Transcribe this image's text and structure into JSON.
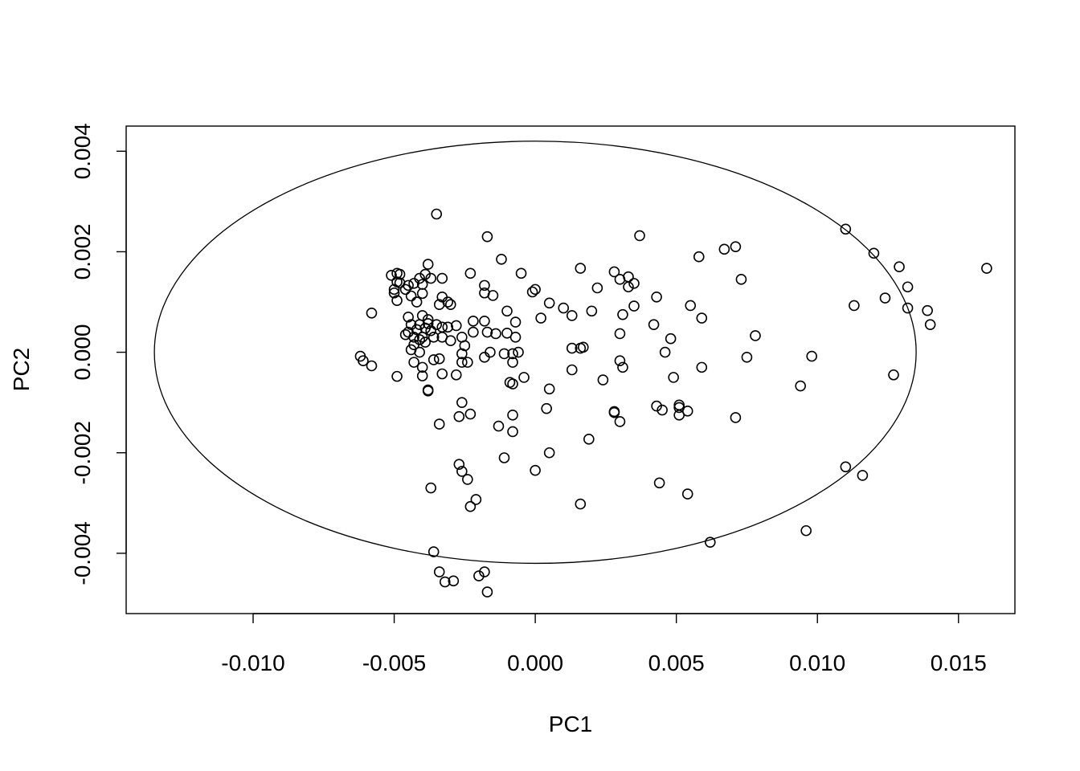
{
  "chart_data": {
    "type": "scatter",
    "title": "",
    "xlabel": "PC1",
    "ylabel": "PC2",
    "xlim": [
      -0.0145,
      0.017
    ],
    "ylim": [
      -0.0052,
      0.0045
    ],
    "x_ticks": [
      -0.01,
      -0.005,
      0.0,
      0.005,
      0.01,
      0.015
    ],
    "x_tick_labels": [
      "-0.010",
      "-0.005",
      "0.000",
      "0.005",
      "0.010",
      "0.015"
    ],
    "y_ticks": [
      -0.004,
      -0.002,
      0.0,
      0.002,
      0.004
    ],
    "y_tick_labels": [
      "-0.004",
      "-0.002",
      "0.000",
      "0.002",
      "0.004"
    ],
    "grid": false,
    "ellipse": {
      "center": [
        0.0,
        0.0
      ],
      "radius_x": 0.0135,
      "radius_y": 0.0042
    },
    "points": [
      [
        -0.0035,
        0.00275
      ],
      [
        -0.0017,
        0.0023
      ],
      [
        -0.0012,
        0.00185
      ],
      [
        -0.0023,
        0.00157
      ],
      [
        -0.0033,
        0.00147
      ],
      [
        -0.0018,
        0.00133
      ],
      [
        -0.0015,
        0.00113
      ],
      [
        -0.0005,
        0.00157
      ],
      [
        -0.0,
        0.00125
      ],
      [
        -0.0001,
        0.0012
      ],
      [
        -0.0038,
        0.00175
      ],
      [
        -0.0039,
        0.00155
      ],
      [
        -0.0037,
        0.00147
      ],
      [
        -0.0041,
        0.00147
      ],
      [
        -0.004,
        0.00135
      ],
      [
        -0.0043,
        0.00137
      ],
      [
        -0.0045,
        0.00133
      ],
      [
        -0.0049,
        0.00157
      ],
      [
        -0.0048,
        0.00155
      ],
      [
        -0.0051,
        0.00153
      ],
      [
        -0.0049,
        0.0014
      ],
      [
        -0.0048,
        0.00138
      ],
      [
        -0.005,
        0.00125
      ],
      [
        -0.005,
        0.00118
      ],
      [
        -0.0049,
        0.00103
      ],
      [
        -0.0046,
        0.00125
      ],
      [
        -0.0044,
        0.00112
      ],
      [
        -0.0042,
        0.001
      ],
      [
        -0.004,
        0.00117
      ],
      [
        -0.0033,
        0.0011
      ],
      [
        -0.0034,
        0.00095
      ],
      [
        -0.0031,
        0.001
      ],
      [
        -0.003,
        0.00095
      ],
      [
        -0.0018,
        0.00118
      ],
      [
        -0.0058,
        0.00078
      ],
      [
        -0.004,
        0.00073
      ],
      [
        -0.0038,
        0.00065
      ],
      [
        -0.0038,
        0.00057
      ],
      [
        -0.0039,
        0.00048
      ],
      [
        -0.0037,
        0.00043
      ],
      [
        -0.0035,
        0.00055
      ],
      [
        -0.0033,
        0.0005
      ],
      [
        -0.0031,
        0.0005
      ],
      [
        -0.0028,
        0.00053
      ],
      [
        -0.0022,
        0.00062
      ],
      [
        -0.0018,
        0.00062
      ],
      [
        -0.0041,
        0.00055
      ],
      [
        -0.0044,
        0.00055
      ],
      [
        -0.0045,
        0.0007
      ],
      [
        -0.0042,
        0.00045
      ],
      [
        -0.0046,
        0.00035
      ],
      [
        -0.0045,
        0.0004
      ],
      [
        -0.0043,
        0.0003
      ],
      [
        -0.004,
        0.0003
      ],
      [
        -0.0041,
        0.00025
      ],
      [
        -0.0043,
        0.00015
      ],
      [
        -0.0044,
        5e-05
      ],
      [
        -0.0041,
        0.0
      ],
      [
        -0.0039,
        0.0002
      ],
      [
        -0.0036,
        0.0003
      ],
      [
        -0.0033,
        0.0003
      ],
      [
        -0.003,
        0.00023
      ],
      [
        -0.0026,
        0.0003
      ],
      [
        -0.0022,
        0.0004
      ],
      [
        -0.0017,
        0.0004
      ],
      [
        -0.001,
        0.00082
      ],
      [
        -0.0007,
        0.0006
      ],
      [
        -0.001,
        0.00038
      ],
      [
        -0.0007,
        0.0003
      ],
      [
        -0.0014,
        0.00037
      ],
      [
        -0.0006,
        0.0
      ],
      [
        -0.0011,
        -3e-05
      ],
      [
        -0.0008,
        -3e-05
      ],
      [
        -0.0016,
        0.0
      ],
      [
        -0.0018,
        -0.0001
      ],
      [
        -0.0026,
        -3e-05
      ],
      [
        -0.0025,
        0.00013
      ],
      [
        -0.0026,
        -0.0002
      ],
      [
        -0.0024,
        -0.0002
      ],
      [
        -0.0034,
        -0.00013
      ],
      [
        -0.0036,
        -0.00015
      ],
      [
        -0.004,
        -0.0003
      ],
      [
        -0.0043,
        -0.0002
      ],
      [
        -0.004,
        -0.00047
      ],
      [
        -0.0033,
        -0.00043
      ],
      [
        -0.0028,
        -0.00045
      ],
      [
        -0.0049,
        -0.00048
      ],
      [
        -0.0062,
        -8e-05
      ],
      [
        -0.0061,
        -0.00017
      ],
      [
        -0.0058,
        -0.00027
      ],
      [
        -0.0038,
        -0.00075
      ],
      [
        -0.0038,
        -0.00077
      ],
      [
        -0.0008,
        -0.0002
      ],
      [
        -0.0009,
        -0.0006
      ],
      [
        -0.0008,
        -0.00063
      ],
      [
        -0.0004,
        -0.0005
      ],
      [
        0.0005,
        -0.00073
      ],
      [
        0.0004,
        -0.00112
      ],
      [
        -0.0008,
        -0.00125
      ],
      [
        -0.0013,
        -0.00147
      ],
      [
        -0.0008,
        -0.00158
      ],
      [
        -0.0023,
        -0.00123
      ],
      [
        -0.0027,
        -0.00128
      ],
      [
        -0.0026,
        -0.001
      ],
      [
        -0.0034,
        -0.00143
      ],
      [
        0.0005,
        -0.002
      ],
      [
        -0.0011,
        -0.0021
      ],
      [
        -0.0027,
        -0.00223
      ],
      [
        -0.0026,
        -0.00237
      ],
      [
        -0.0024,
        -0.00253
      ],
      [
        -0.0023,
        -0.00307
      ],
      [
        -0.0021,
        -0.00293
      ],
      [
        -0.0037,
        -0.0027
      ],
      [
        0.0,
        -0.00235
      ],
      [
        0.0016,
        -0.00302
      ],
      [
        0.0019,
        -0.00173
      ],
      [
        -0.0036,
        -0.00397
      ],
      [
        -0.0034,
        -0.00437
      ],
      [
        -0.0032,
        -0.00457
      ],
      [
        -0.0029,
        -0.00455
      ],
      [
        -0.002,
        -0.00445
      ],
      [
        -0.0018,
        -0.00437
      ],
      [
        -0.0017,
        -0.00477
      ],
      [
        0.0016,
        0.00167
      ],
      [
        0.0022,
        0.00128
      ],
      [
        0.0028,
        0.0016
      ],
      [
        0.003,
        0.00145
      ],
      [
        0.0033,
        0.0015
      ],
      [
        0.0033,
        0.0013
      ],
      [
        0.0035,
        0.00137
      ],
      [
        0.0037,
        0.00232
      ],
      [
        0.0005,
        0.00098
      ],
      [
        0.001,
        0.00088
      ],
      [
        0.0013,
        0.00073
      ],
      [
        0.002,
        0.00082
      ],
      [
        0.0031,
        0.00075
      ],
      [
        0.0035,
        0.00092
      ],
      [
        0.0043,
        0.0011
      ],
      [
        0.0042,
        0.00055
      ],
      [
        0.003,
        0.00037
      ],
      [
        0.0002,
        0.00068
      ],
      [
        0.0013,
        8e-05
      ],
      [
        0.0016,
        8e-05
      ],
      [
        0.0017,
        0.0001
      ],
      [
        0.0013,
        -0.00035
      ],
      [
        0.0024,
        -0.00055
      ],
      [
        0.003,
        -0.00017
      ],
      [
        0.0031,
        -0.0003
      ],
      [
        0.0028,
        -0.00118
      ],
      [
        0.0028,
        -0.0012
      ],
      [
        0.003,
        -0.00138
      ],
      [
        0.0043,
        -0.00107
      ],
      [
        0.0045,
        -0.00115
      ],
      [
        0.0046,
        0.0
      ],
      [
        0.0048,
        0.00027
      ],
      [
        0.0049,
        -0.0005
      ],
      [
        0.0051,
        -0.00105
      ],
      [
        0.0051,
        -0.0011
      ],
      [
        0.0051,
        -0.00125
      ],
      [
        0.0054,
        -0.00117
      ],
      [
        0.0055,
        0.00093
      ],
      [
        0.0058,
        0.0019
      ],
      [
        0.0059,
        0.00068
      ],
      [
        0.0059,
        -0.0003
      ],
      [
        0.0067,
        0.00205
      ],
      [
        0.0071,
        0.0021
      ],
      [
        0.0073,
        0.00145
      ],
      [
        0.0075,
        -0.0001
      ],
      [
        0.0078,
        0.00033
      ],
      [
        0.0071,
        -0.0013
      ],
      [
        0.0044,
        -0.0026
      ],
      [
        0.0054,
        -0.00282
      ],
      [
        0.0062,
        -0.00378
      ],
      [
        0.0096,
        -0.00355
      ],
      [
        0.0094,
        -0.00067
      ],
      [
        0.0098,
        -8e-05
      ],
      [
        0.011,
        0.00245
      ],
      [
        0.012,
        0.00197
      ],
      [
        0.0113,
        0.00093
      ],
      [
        0.0124,
        0.00108
      ],
      [
        0.0129,
        0.0017
      ],
      [
        0.0132,
        0.0013
      ],
      [
        0.0132,
        0.00088
      ],
      [
        0.0127,
        -0.00045
      ],
      [
        0.0139,
        0.00083
      ],
      [
        0.014,
        0.00055
      ],
      [
        0.016,
        0.00167
      ],
      [
        0.011,
        -0.00228
      ],
      [
        0.0116,
        -0.00245
      ]
    ]
  }
}
